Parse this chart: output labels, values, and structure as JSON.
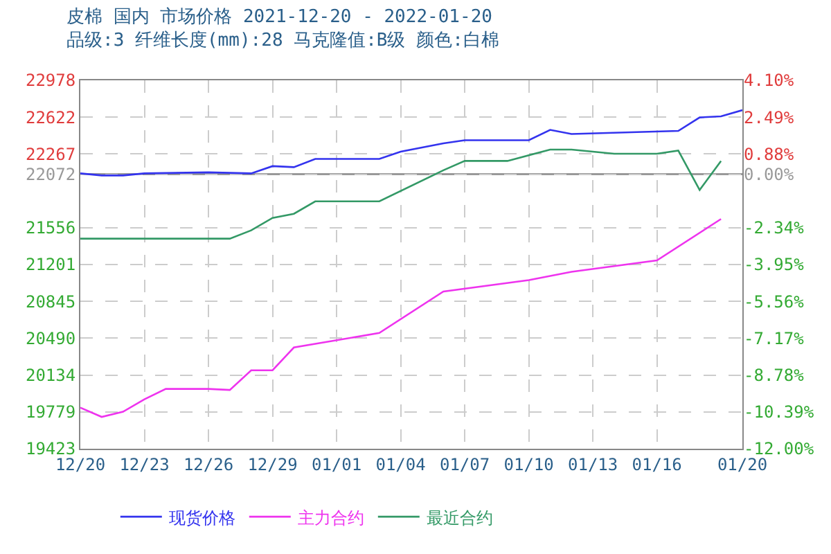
{
  "chart_data": {
    "type": "line",
    "title": "皮棉 国内 市场价格 2021-12-20 - 2022-01-20",
    "subtitle": "品级:3 纤维长度(mm):28 马克隆值:B级 颜色:白棉",
    "series": [
      {
        "name": "现货价格",
        "color": "#3333ee",
        "x": [
          "2021-12-20",
          "2021-12-21",
          "2021-12-22",
          "2021-12-23",
          "2021-12-26",
          "2021-12-28",
          "2021-12-29",
          "2021-12-30",
          "2021-12-31",
          "2022-01-03",
          "2022-01-04",
          "2022-01-06",
          "2022-01-07",
          "2022-01-10",
          "2022-01-11",
          "2022-01-12",
          "2022-01-17",
          "2022-01-18",
          "2022-01-19",
          "2022-01-20"
        ],
        "values": [
          22080,
          22060,
          22060,
          22080,
          22090,
          22080,
          22150,
          22140,
          22220,
          22220,
          22290,
          22370,
          22400,
          22400,
          22500,
          22460,
          22490,
          22620,
          22630,
          22690
        ]
      },
      {
        "name": "主力合约",
        "color": "#ee33ee",
        "x": [
          "2021-12-20",
          "2021-12-21",
          "2021-12-22",
          "2021-12-23",
          "2021-12-24",
          "2021-12-26",
          "2021-12-27",
          "2021-12-28",
          "2021-12-29",
          "2021-12-30",
          "2022-01-03",
          "2022-01-06",
          "2022-01-10",
          "2022-01-12",
          "2022-01-16",
          "2022-01-19"
        ],
        "values": [
          19820,
          19730,
          19780,
          19900,
          20000,
          20000,
          19990,
          20180,
          20180,
          20400,
          20540,
          20940,
          21050,
          21130,
          21240,
          21640
        ]
      },
      {
        "name": "最近合约",
        "color": "#339966",
        "x": [
          "2021-12-20",
          "2021-12-27",
          "2021-12-28",
          "2021-12-29",
          "2021-12-30",
          "2021-12-31",
          "2022-01-03",
          "2022-01-06",
          "2022-01-07",
          "2022-01-09",
          "2022-01-11",
          "2022-01-12",
          "2022-01-14",
          "2022-01-16",
          "2022-01-17",
          "2022-01-18",
          "2022-01-19"
        ],
        "values": [
          21450,
          21450,
          21530,
          21650,
          21690,
          21810,
          21810,
          22110,
          22200,
          22200,
          22310,
          22310,
          22270,
          22270,
          22300,
          21920,
          22200
        ]
      }
    ],
    "xlim": [
      "2021-12-20",
      "2022-01-20"
    ],
    "xticks": [
      {
        "value": "2021-12-20",
        "label": "12/20"
      },
      {
        "value": "2021-12-23",
        "label": "12/23"
      },
      {
        "value": "2021-12-26",
        "label": "12/26"
      },
      {
        "value": "2021-12-29",
        "label": "12/29"
      },
      {
        "value": "2022-01-01",
        "label": "01/01"
      },
      {
        "value": "2022-01-04",
        "label": "01/04"
      },
      {
        "value": "2022-01-07",
        "label": "01/07"
      },
      {
        "value": "2022-01-10",
        "label": "01/10"
      },
      {
        "value": "2022-01-13",
        "label": "01/13"
      },
      {
        "value": "2022-01-16",
        "label": "01/16"
      },
      {
        "value": "2022-01-20",
        "label": "01/20"
      }
    ],
    "ylim": [
      19423,
      22978
    ],
    "yticks": [
      22978,
      22622,
      22267,
      22072,
      21556,
      21201,
      20845,
      20490,
      20134,
      19779,
      19423
    ],
    "y2lim": [
      -12.0,
      4.1
    ],
    "y2ticks": [
      {
        "value": 4.1,
        "label": "4.10%"
      },
      {
        "value": 2.49,
        "label": "2.49%"
      },
      {
        "value": 0.88,
        "label": "0.88%"
      },
      {
        "value": 0.0,
        "label": "0.00%"
      },
      {
        "value": -2.34,
        "label": "-2.34%"
      },
      {
        "value": -3.95,
        "label": "-3.95%"
      },
      {
        "value": -5.56,
        "label": "-5.56%"
      },
      {
        "value": -7.17,
        "label": "-7.17%"
      },
      {
        "value": -8.78,
        "label": "-8.78%"
      },
      {
        "value": -10.39,
        "label": "-10.39%"
      },
      {
        "value": -12.0,
        "label": "-12.00%"
      }
    ],
    "ref_lines": [
      {
        "axis": "y",
        "value": 22072,
        "color": "#999999"
      }
    ],
    "grid": true,
    "legend": "bottom",
    "marker": "none",
    "line_style": "solid"
  }
}
